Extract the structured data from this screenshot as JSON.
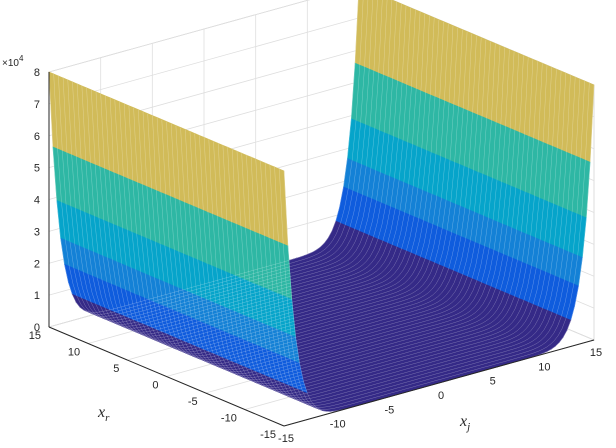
{
  "chart_data": {
    "type": "surface",
    "title": "",
    "xlabel": "x_r",
    "xlabel_base": "x",
    "xlabel_sub": "r",
    "ylabel": "x_j",
    "ylabel_base": "x",
    "ylabel_sub": "j",
    "zlabel": "",
    "z_multiplier": "×10",
    "z_multiplier_exp": "4",
    "xlim": [
      -15,
      15
    ],
    "ylim": [
      -15,
      15
    ],
    "zlim": [
      0,
      80000
    ],
    "x_ticks": [
      "-15",
      "-10",
      "-5",
      "0",
      "5",
      "10",
      "15"
    ],
    "y_ticks": [
      "-15",
      "-10",
      "-5",
      "0",
      "5",
      "10",
      "15"
    ],
    "z_ticks": [
      "0",
      "1",
      "2",
      "3",
      "4",
      "5",
      "6",
      "7",
      "8"
    ],
    "grid": true,
    "colormap": "parula",
    "colormap_colors": [
      "#352a87",
      "#0f5cdd",
      "#1481d6",
      "#06a4ca",
      "#2eb7a4",
      "#87bf77",
      "#d1bb59",
      "#fec832",
      "#f9fb0e"
    ],
    "surface_description": "valley-shaped surface, near zero in the middle of x_j and rising steeply toward the x_j edges",
    "edge_peak_value": 80000
  }
}
